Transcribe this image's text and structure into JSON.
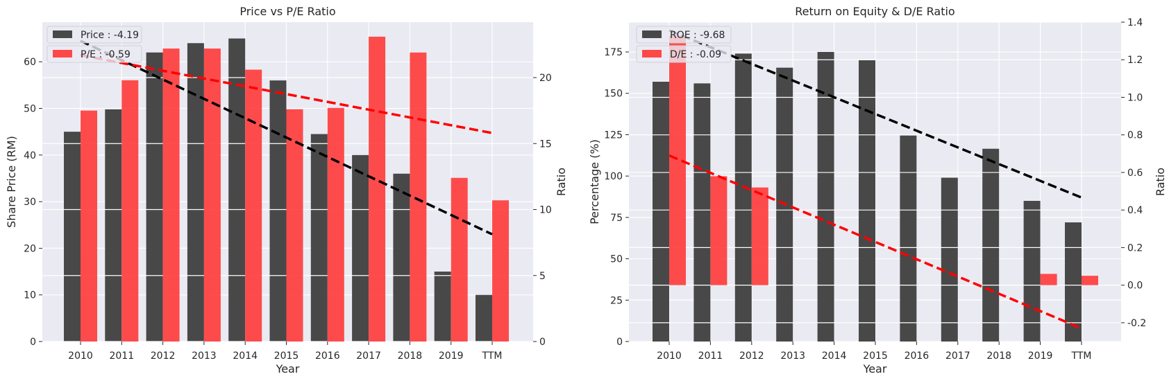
{
  "chart_data": [
    {
      "type": "bar",
      "title": "Price vs P/E Ratio",
      "xlabel": "Year",
      "ylabel": "Share Price (RM)",
      "y2label": "Ratio",
      "categories": [
        "2010",
        "2011",
        "2012",
        "2013",
        "2014",
        "2015",
        "2016",
        "2017",
        "2018",
        "2019",
        "TTM"
      ],
      "ylim": [
        0,
        68.5
      ],
      "y2lim": [
        0,
        24.2
      ],
      "yticks": [
        0,
        10,
        20,
        30,
        40,
        50,
        60
      ],
      "y2ticks": [
        0,
        5,
        10,
        15,
        20
      ],
      "grid": true,
      "legend_position": "top-left",
      "series": [
        {
          "name": "Price : -4.19",
          "axis": "left",
          "color": "#3a3a3a",
          "values": [
            45,
            49.8,
            62,
            64,
            65,
            56,
            44.5,
            40,
            36,
            15,
            10
          ]
        },
        {
          "name": "P/E : -0.59",
          "axis": "right",
          "color": "#ff3a3a",
          "values": [
            17.5,
            19.8,
            22.2,
            22.2,
            20.6,
            17.6,
            17.7,
            23.1,
            21.9,
            12.4,
            10.7
          ]
        }
      ],
      "trendlines": [
        {
          "series": "Price : -4.19",
          "axis": "left",
          "color": "#000000",
          "from": [
            0,
            64.5
          ],
          "to": [
            10,
            23
          ]
        },
        {
          "series": "P/E : -0.59",
          "axis": "right",
          "color": "#ff0000",
          "from": [
            0,
            21.7
          ],
          "to": [
            10,
            15.8
          ]
        }
      ]
    },
    {
      "type": "bar",
      "title": "Return on Equity & D/E Ratio",
      "xlabel": "Year",
      "ylabel": "Percentage (%)",
      "y2label": "Ratio",
      "categories": [
        "2010",
        "2011",
        "2012",
        "2013",
        "2014",
        "2015",
        "2016",
        "2017",
        "2018",
        "2019",
        "TTM"
      ],
      "ylim": [
        0,
        193
      ],
      "y2lim": [
        -0.3,
        1.4
      ],
      "yticks": [
        0,
        25,
        50,
        75,
        100,
        125,
        150,
        175
      ],
      "y2ticks": [
        -0.2,
        0.0,
        0.2,
        0.4,
        0.6,
        0.8,
        1.0,
        1.2,
        1.4
      ],
      "grid": true,
      "legend_position": "top-left",
      "series": [
        {
          "name": "ROE : -9.68",
          "axis": "left",
          "color": "#3a3a3a",
          "values": [
            157,
            156,
            174,
            165.5,
            175,
            170,
            124.5,
            99,
            116.5,
            85,
            72
          ]
        },
        {
          "name": "D/E : -0.09",
          "axis": "right",
          "color": "#ff3a3a",
          "values": [
            1.33,
            0.58,
            0.52,
            null,
            null,
            null,
            null,
            null,
            null,
            0.06,
            0.05
          ]
        }
      ],
      "trendlines": [
        {
          "series": "ROE : -9.68",
          "axis": "left",
          "color": "#000000",
          "from": [
            0,
            188
          ],
          "to": [
            10,
            87
          ]
        },
        {
          "series": "D/E : -0.09",
          "axis": "right",
          "color": "#ff0000",
          "from": [
            0,
            0.69
          ],
          "to": [
            10,
            -0.23
          ]
        }
      ]
    }
  ]
}
